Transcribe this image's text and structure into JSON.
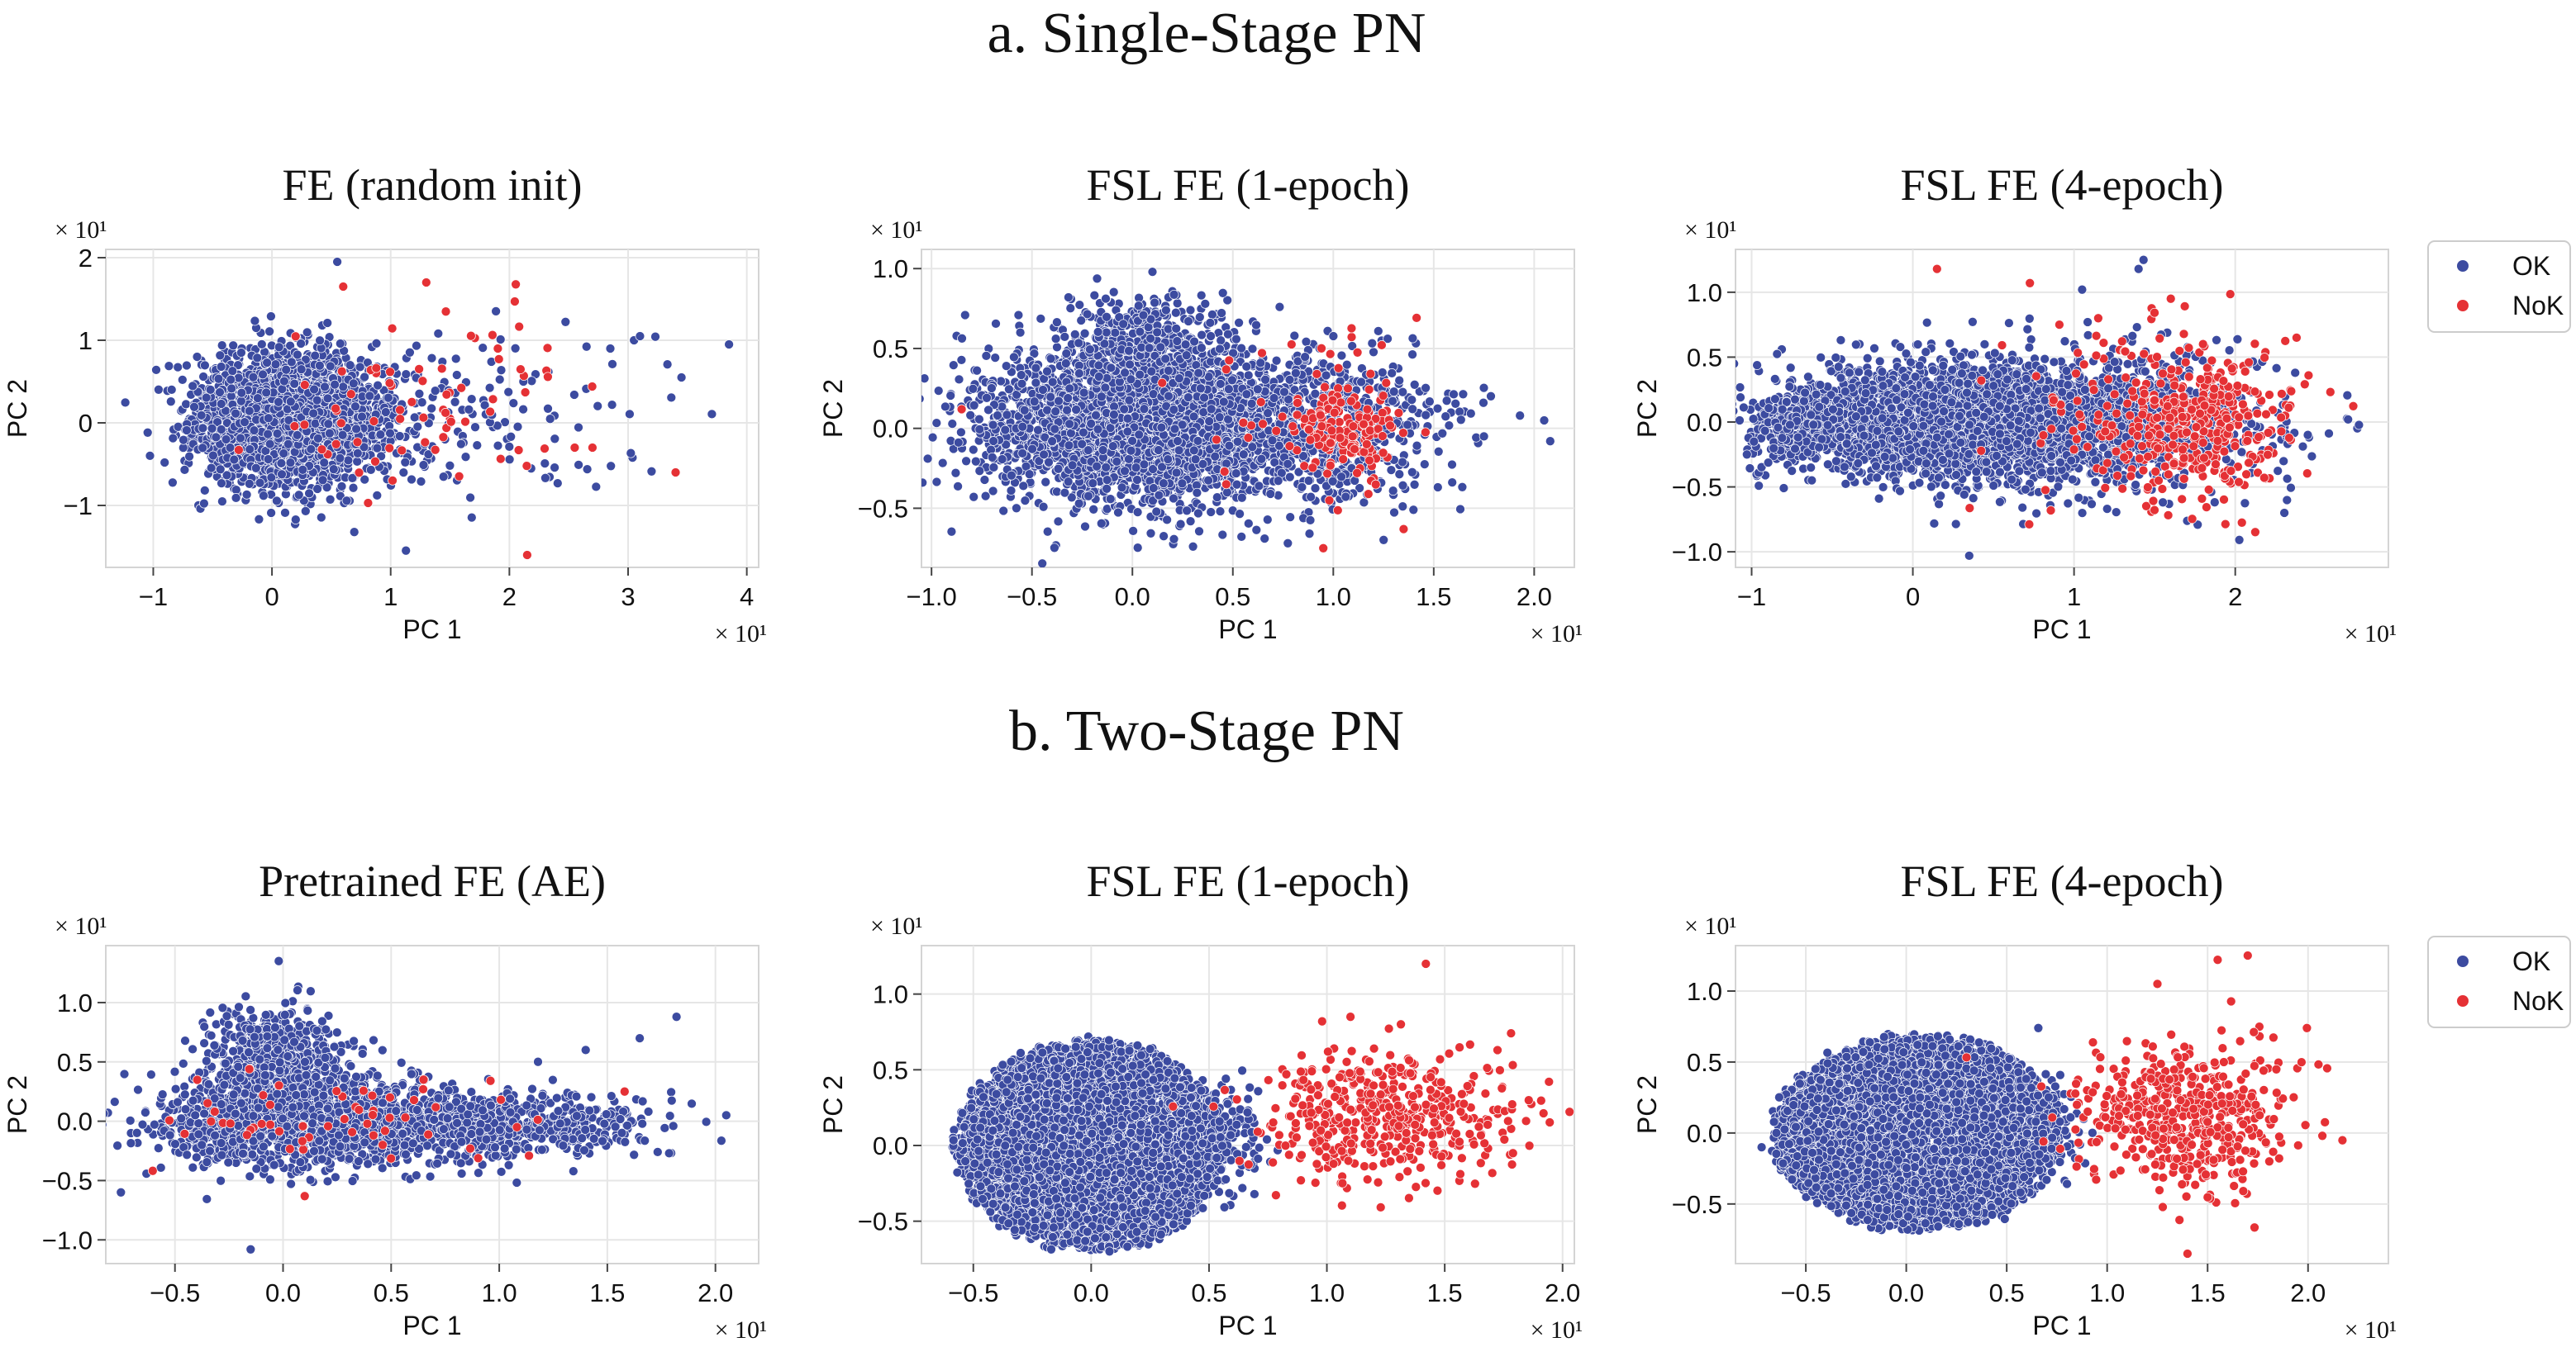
{
  "colors": {
    "ok": "#3c4ba0",
    "nok": "#e53135",
    "grid": "#e6e6e6",
    "axis": "#d4d4d4",
    "text": "#111111"
  },
  "sections": [
    {
      "heading": "a. Single-Stage PN"
    },
    {
      "heading": "b. Two-Stage PN"
    }
  ],
  "legends": [
    {
      "entries": [
        {
          "label": "OK",
          "color": "#3c4ba0"
        },
        {
          "label": "NoK",
          "color": "#e53135"
        }
      ]
    },
    {
      "entries": [
        {
          "label": "OK",
          "color": "#3c4ba0"
        },
        {
          "label": "NoK",
          "color": "#e53135"
        }
      ]
    }
  ],
  "chart_data": [
    {
      "type": "scatter",
      "section": "a. Single-Stage PN",
      "title": "FE (random init)",
      "xlabel": "PC 1",
      "ylabel": "PC 2",
      "x_multiplier": "× 10¹",
      "y_multiplier": "× 10¹",
      "xlim": [
        -1.4,
        4.1
      ],
      "ylim": [
        -1.75,
        2.1
      ],
      "grid": true,
      "xticks": [
        -1,
        0,
        1,
        2,
        3,
        4
      ],
      "xtick_labels": [
        "−1",
        "0",
        "1",
        "2",
        "3",
        "4"
      ],
      "yticks": [
        -1,
        0,
        1,
        2
      ],
      "ytick_labels": [
        "−1",
        "0",
        "1",
        "2"
      ],
      "series": [
        {
          "name": "OK",
          "clusters": [
            {
              "n": 2600,
              "cx": 0.1,
              "cy": 0.05,
              "sx": 0.36,
              "sy": 0.38,
              "shape": "gauss"
            },
            {
              "n": 240,
              "cx": 0.9,
              "cy": 0.0,
              "sx": 0.55,
              "sy": 0.45,
              "shape": "gauss"
            },
            {
              "n": 60,
              "cx": 2.1,
              "cy": 0.2,
              "sx": 0.55,
              "sy": 0.5,
              "shape": "gauss"
            }
          ],
          "points": [
            [
              3.85,
              0.95
            ],
            [
              3.05,
              1.0
            ],
            [
              2.85,
              0.9
            ],
            [
              3.45,
              0.55
            ],
            [
              3.1,
              1.05
            ],
            [
              0.55,
              1.95
            ]
          ]
        },
        {
          "name": "NoK",
          "clusters": [
            {
              "n": 70,
              "cx": 1.3,
              "cy": 0.2,
              "sx": 0.7,
              "sy": 0.55,
              "shape": "gauss"
            }
          ],
          "points": [
            [
              3.4,
              -0.6
            ],
            [
              2.15,
              -1.6
            ],
            [
              1.3,
              1.7
            ],
            [
              2.7,
              -0.3
            ],
            [
              2.55,
              -0.3
            ],
            [
              0.6,
              1.65
            ]
          ]
        }
      ]
    },
    {
      "type": "scatter",
      "section": "a. Single-Stage PN",
      "title": "FSL FE (1-epoch)",
      "xlabel": "PC 1",
      "ylabel": "PC 2",
      "x_multiplier": "× 10¹",
      "y_multiplier": "× 10¹",
      "xlim": [
        -1.05,
        2.2
      ],
      "ylim": [
        -0.87,
        1.12
      ],
      "grid": true,
      "xticks": [
        -1.0,
        -0.5,
        0.0,
        0.5,
        1.0,
        1.5,
        2.0
      ],
      "xtick_labels": [
        "−1.0",
        "−0.5",
        "0.0",
        "0.5",
        "1.0",
        "1.5",
        "2.0"
      ],
      "yticks": [
        -0.5,
        0.0,
        0.5,
        1.0
      ],
      "ytick_labels": [
        "−0.5",
        "0.0",
        "0.5",
        "1.0"
      ],
      "series": [
        {
          "name": "OK",
          "clusters": [
            {
              "n": 3400,
              "cx": 0.05,
              "cy": 0.03,
              "sx": 0.38,
              "sy": 0.24,
              "shape": "gauss"
            },
            {
              "n": 600,
              "cx": 0.95,
              "cy": 0.0,
              "sx": 0.33,
              "sy": 0.24,
              "shape": "gauss"
            },
            {
              "n": 250,
              "cx": 0.05,
              "cy": 0.55,
              "sx": 0.2,
              "sy": 0.15,
              "shape": "gauss"
            }
          ],
          "points": [
            [
              2.05,
              0.05
            ],
            [
              2.08,
              -0.08
            ],
            [
              1.75,
              -0.05
            ],
            [
              0.1,
              0.98
            ]
          ]
        },
        {
          "name": "NoK",
          "clusters": [
            {
              "n": 130,
              "cx": 1.05,
              "cy": -0.02,
              "sx": 0.12,
              "sy": 0.13,
              "shape": "gauss"
            },
            {
              "n": 50,
              "cx": 0.95,
              "cy": 0.1,
              "sx": 0.28,
              "sy": 0.3,
              "shape": "gauss"
            }
          ],
          "points": [
            [
              1.35,
              -0.63
            ],
            [
              -0.85,
              0.12
            ],
            [
              0.95,
              -0.75
            ]
          ]
        }
      ]
    },
    {
      "type": "scatter",
      "section": "a. Single-Stage PN",
      "title": "FSL FE (4-epoch)",
      "xlabel": "PC 1",
      "ylabel": "PC 2",
      "x_multiplier": "× 10¹",
      "y_multiplier": "× 10¹",
      "xlim": [
        -1.1,
        2.95
      ],
      "ylim": [
        -1.12,
        1.33
      ],
      "grid": true,
      "xticks": [
        -1,
        0,
        1,
        2
      ],
      "xtick_labels": [
        "−1",
        "0",
        "1",
        "2"
      ],
      "yticks": [
        -1.0,
        -0.5,
        0.0,
        0.5,
        1.0
      ],
      "ytick_labels": [
        "−1.0",
        "−0.5",
        "0.0",
        "0.5",
        "1.0"
      ],
      "series": [
        {
          "name": "OK",
          "clusters": [
            {
              "n": 3600,
              "cx": 0.2,
              "cy": 0.0,
              "sx": 0.5,
              "sy": 0.2,
              "shape": "gauss"
            },
            {
              "n": 900,
              "cx": 1.25,
              "cy": 0.0,
              "sx": 0.5,
              "sy": 0.28,
              "shape": "gauss"
            },
            {
              "n": 200,
              "cx": -0.75,
              "cy": -0.02,
              "sx": 0.12,
              "sy": 0.12,
              "shape": "gauss"
            }
          ],
          "points": [
            [
              2.7,
              0.02
            ],
            [
              2.45,
              -0.1
            ],
            [
              1.05,
              1.02
            ],
            [
              1.4,
              1.18
            ],
            [
              0.35,
              -1.03
            ]
          ]
        },
        {
          "name": "NoK",
          "clusters": [
            {
              "n": 380,
              "cx": 1.75,
              "cy": 0.0,
              "sx": 0.28,
              "sy": 0.3,
              "shape": "gauss"
            },
            {
              "n": 60,
              "cx": 1.2,
              "cy": 0.05,
              "sx": 0.4,
              "sy": 0.35,
              "shape": "gauss"
            }
          ],
          "points": [
            [
              0.15,
              1.18
            ],
            [
              1.6,
              0.95
            ],
            [
              1.15,
              0.8
            ]
          ]
        }
      ]
    },
    {
      "type": "scatter",
      "section": "b. Two-Stage PN",
      "title": "Pretrained FE (AE)",
      "xlabel": "PC 1",
      "ylabel": "PC 2",
      "x_multiplier": "× 10¹",
      "y_multiplier": "× 10¹",
      "xlim": [
        -0.82,
        2.2
      ],
      "ylim": [
        -1.2,
        1.48
      ],
      "grid": true,
      "xticks": [
        -0.5,
        0.0,
        0.5,
        1.0,
        1.5,
        2.0
      ],
      "xtick_labels": [
        "−0.5",
        "0.0",
        "0.5",
        "1.0",
        "1.5",
        "2.0"
      ],
      "yticks": [
        -1.0,
        -0.5,
        0.0,
        0.5,
        1.0
      ],
      "ytick_labels": [
        "−1.0",
        "−0.5",
        "0.0",
        "0.5",
        "1.0"
      ],
      "series": [
        {
          "name": "OK",
          "clusters": [
            {
              "n": 1300,
              "cx": 0.05,
              "cy": 0.0,
              "sx": 0.32,
              "sy": 0.2,
              "shape": "gauss"
            },
            {
              "n": 600,
              "cx": -0.05,
              "cy": 0.5,
              "sx": 0.14,
              "sy": 0.22,
              "shape": "gauss"
            },
            {
              "n": 700,
              "cx": 0.75,
              "cy": -0.02,
              "sx": 0.4,
              "sy": 0.14,
              "shape": "gauss"
            },
            {
              "n": 150,
              "cx": 1.3,
              "cy": 0.0,
              "sx": 0.25,
              "sy": 0.12,
              "shape": "gauss"
            }
          ],
          "points": [
            [
              -0.02,
              1.35
            ],
            [
              2.05,
              0.05
            ],
            [
              1.82,
              0.88
            ],
            [
              1.65,
              0.7
            ],
            [
              1.4,
              0.6
            ],
            [
              -0.15,
              -1.08
            ],
            [
              -0.75,
              -0.6
            ]
          ]
        },
        {
          "name": "NoK",
          "clusters": [
            {
              "n": 55,
              "cx": 0.2,
              "cy": 0.05,
              "sx": 0.4,
              "sy": 0.18,
              "shape": "gauss"
            }
          ],
          "points": [
            [
              1.58,
              0.25
            ],
            [
              0.65,
              0.35
            ]
          ]
        }
      ]
    },
    {
      "type": "scatter",
      "section": "b. Two-Stage PN",
      "title": "FSL FE (1-epoch)",
      "xlabel": "PC 1",
      "ylabel": "PC 2",
      "x_multiplier": "× 10¹",
      "y_multiplier": "× 10¹",
      "xlim": [
        -0.72,
        2.05
      ],
      "ylim": [
        -0.78,
        1.32
      ],
      "grid": true,
      "xticks": [
        -0.5,
        0.0,
        0.5,
        1.0,
        1.5,
        2.0
      ],
      "xtick_labels": [
        "−0.5",
        "0.0",
        "0.5",
        "1.0",
        "1.5",
        "2.0"
      ],
      "yticks": [
        -0.5,
        0.0,
        0.5,
        1.0
      ],
      "ytick_labels": [
        "−0.5",
        "0.0",
        "0.5",
        "1.0"
      ],
      "series": [
        {
          "name": "OK",
          "clusters": [
            {
              "n": 5200,
              "cx": 0.0,
              "cy": 0.0,
              "rx": 0.6,
              "ry": 0.72,
              "shape": "disc"
            },
            {
              "n": 150,
              "cx": 0.55,
              "cy": 0.05,
              "sx": 0.1,
              "sy": 0.2,
              "shape": "gauss"
            }
          ],
          "points": []
        },
        {
          "name": "NoK",
          "clusters": [
            {
              "n": 480,
              "cx": 1.25,
              "cy": 0.18,
              "sx": 0.26,
              "sy": 0.2,
              "shape": "gauss"
            }
          ],
          "points": [
            [
              1.42,
              1.2
            ],
            [
              0.98,
              0.82
            ],
            [
              1.1,
              0.85
            ]
          ]
        }
      ]
    },
    {
      "type": "scatter",
      "section": "b. Two-Stage PN",
      "title": "FSL FE (4-epoch)",
      "xlabel": "PC 1",
      "ylabel": "PC 2",
      "x_multiplier": "× 10¹",
      "y_multiplier": "× 10¹",
      "xlim": [
        -0.85,
        2.4
      ],
      "ylim": [
        -0.92,
        1.32
      ],
      "grid": true,
      "xticks": [
        -0.5,
        0.0,
        0.5,
        1.0,
        1.5,
        2.0
      ],
      "xtick_labels": [
        "−0.5",
        "0.0",
        "0.5",
        "1.0",
        "1.5",
        "2.0"
      ],
      "yticks": [
        -0.5,
        0.0,
        0.5,
        1.0
      ],
      "ytick_labels": [
        "−0.5",
        "0.0",
        "0.5",
        "1.0"
      ],
      "series": [
        {
          "name": "OK",
          "clusters": [
            {
              "n": 5200,
              "cx": 0.05,
              "cy": 0.0,
              "rx": 0.75,
              "ry": 0.72,
              "shape": "disc"
            },
            {
              "n": 120,
              "cx": 0.7,
              "cy": 0.0,
              "sx": 0.1,
              "sy": 0.2,
              "shape": "gauss"
            }
          ],
          "points": [
            [
              -0.72,
              -0.1
            ]
          ]
        },
        {
          "name": "NoK",
          "clusters": [
            {
              "n": 480,
              "cx": 1.4,
              "cy": 0.12,
              "sx": 0.27,
              "sy": 0.25,
              "shape": "gauss"
            }
          ],
          "points": [
            [
              1.7,
              1.25
            ],
            [
              1.55,
              1.22
            ],
            [
              1.25,
              1.05
            ],
            [
              1.4,
              -0.85
            ]
          ]
        }
      ]
    }
  ]
}
